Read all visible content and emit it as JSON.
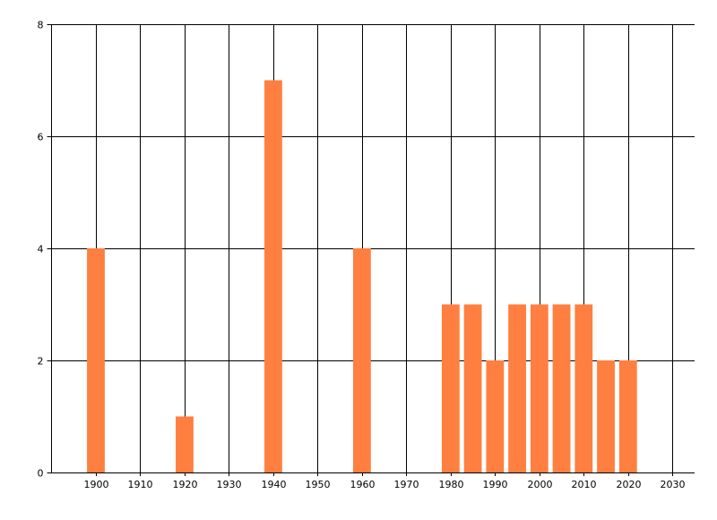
{
  "chart_data": {
    "type": "bar",
    "title": "",
    "xlabel": "",
    "ylabel": "",
    "x": [
      1900,
      1920,
      1940,
      1960,
      1980,
      1985,
      1990,
      1995,
      2000,
      2005,
      2010,
      2015,
      2020
    ],
    "values": [
      4,
      1,
      7,
      4,
      3,
      3,
      2,
      3,
      3,
      3,
      3,
      2,
      2
    ],
    "xlim": [
      1890,
      2035
    ],
    "ylim": [
      0,
      8
    ],
    "x_ticks": [
      1900,
      1910,
      1920,
      1930,
      1940,
      1950,
      1960,
      1970,
      1980,
      1990,
      2000,
      2010,
      2020,
      2030
    ],
    "y_ticks": [
      0,
      2,
      4,
      6,
      8
    ],
    "bar_width_years": 4,
    "grid": true,
    "legend": "none",
    "bar_color": "#FF7F40",
    "grid_color": "#000000"
  }
}
